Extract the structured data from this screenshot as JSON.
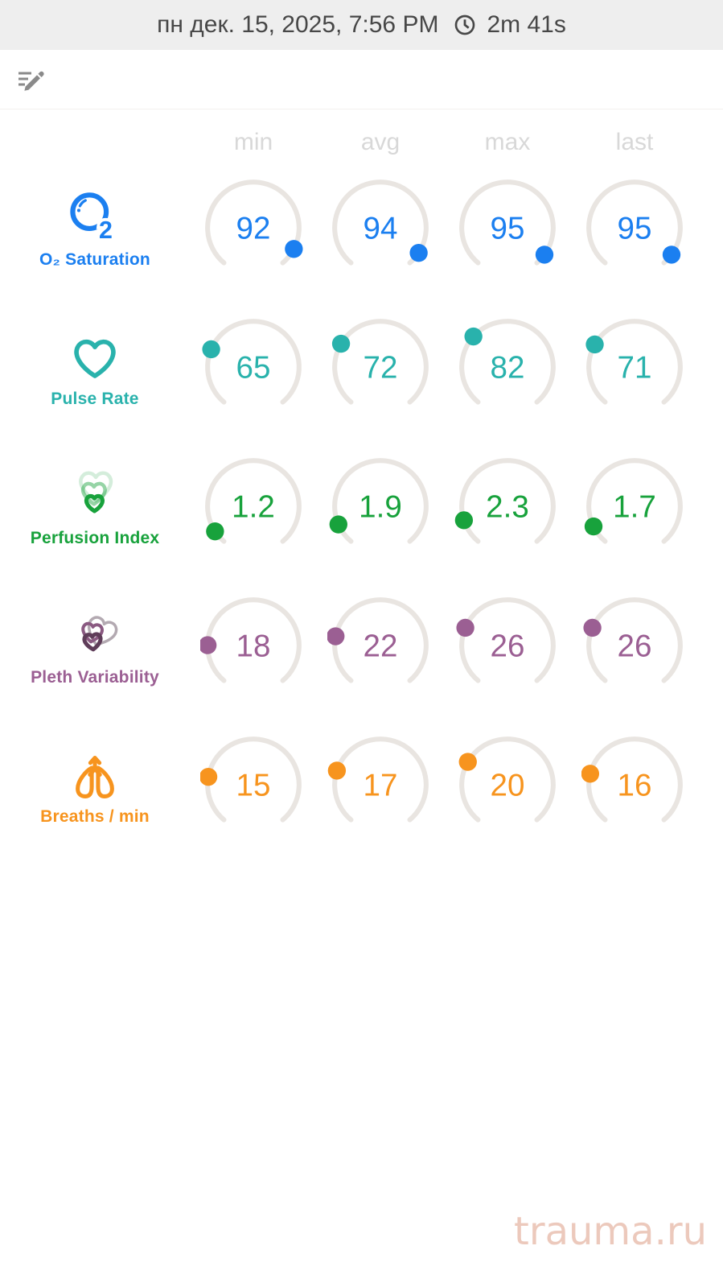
{
  "header": {
    "date": "пн дек. 15, 2025, 7:56 PM",
    "duration": "2m 41s"
  },
  "toolbar": {
    "edit_icon": "note-edit-icon"
  },
  "colors": {
    "arc": "#e9e5e1",
    "column_header": "#d8d8d8",
    "statusbar_bg": "#eeeeee",
    "statusbar_text": "#474747",
    "edit_icon": "#8a8a8a",
    "watermark": "#ecc9bc",
    "o2_blue": "#1b7ff0",
    "pulse_teal": "#29b2ac",
    "perfusion_green": "#18a23c",
    "pleth_purple": "#9b5f93",
    "breaths_orange": "#f7941e"
  },
  "chart_data": {
    "type": "table",
    "title": "Session vitals summary gauges",
    "columns": [
      "min",
      "avg",
      "max",
      "last"
    ],
    "gauge": {
      "start_angle_deg": 220,
      "sweep_deg": 280
    },
    "rows": [
      {
        "key": "o2-saturation",
        "label": "O₂ Saturation",
        "icon": "o2-molecule-icon",
        "color": "#1b7ff0",
        "range": [
          0,
          100
        ],
        "values": [
          92,
          94,
          95,
          95
        ]
      },
      {
        "key": "pulse-rate",
        "label": "Pulse Rate",
        "icon": "heart-icon",
        "color": "#29b2ac",
        "range": [
          0,
          250
        ],
        "values": [
          65,
          72,
          82,
          71
        ]
      },
      {
        "key": "perfusion-index",
        "label": "Perfusion Index",
        "icon": "nested-hearts-icon",
        "color": "#18a23c",
        "range": [
          0,
          20
        ],
        "values": [
          1.2,
          1.9,
          2.3,
          1.7
        ]
      },
      {
        "key": "pleth-variability",
        "label": "Pleth Variability",
        "icon": "overlapping-hearts-icon",
        "color": "#9b5f93",
        "range": [
          0,
          100
        ],
        "values": [
          18,
          22,
          26,
          26
        ]
      },
      {
        "key": "breaths-per-min",
        "label": "Breaths / min",
        "icon": "lungs-icon",
        "color": "#f7941e",
        "range": [
          0,
          70
        ],
        "values": [
          15,
          17,
          20,
          16
        ]
      }
    ]
  },
  "watermark": "trauma.ru"
}
